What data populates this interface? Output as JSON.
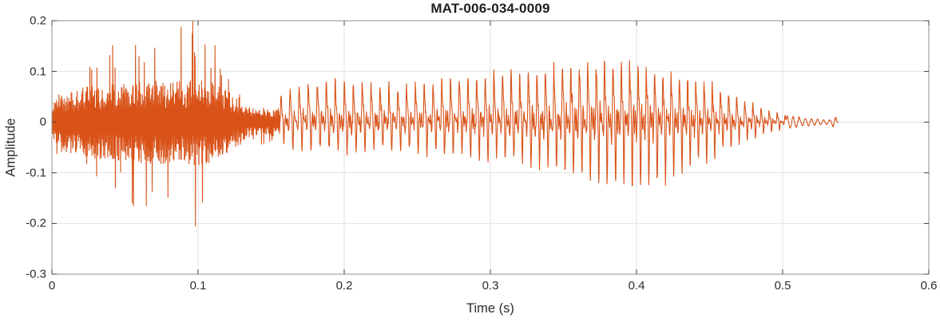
{
  "figure": {
    "title": "MAT-006-034-0009",
    "xlabel": "Time (s)",
    "ylabel": "Amplitude"
  },
  "colors": {
    "line": "#D95319",
    "grid": "#E2E2E2",
    "box": "#8C8C8C",
    "tick_mark": "#404040",
    "tick_text": "#2B2B2B",
    "title_text": "#1F1F1F"
  },
  "chart_data": {
    "type": "line",
    "title": "MAT-006-034-0009",
    "xlabel": "Time (s)",
    "ylabel": "Amplitude",
    "xlim": [
      0,
      0.6
    ],
    "ylim": [
      -0.3,
      0.2
    ],
    "grid": true,
    "box": true,
    "line_color": "#D95319",
    "xticks": {
      "values": [
        0,
        0.1,
        0.2,
        0.3,
        0.4,
        0.5,
        0.6
      ],
      "labels": [
        "0",
        "0.1",
        "0.2",
        "0.3",
        "0.4",
        "0.5",
        "0.6"
      ]
    },
    "yticks": {
      "values": [
        0.2,
        0.1,
        0,
        -0.1,
        -0.2,
        -0.3
      ],
      "labels": [
        "0.2",
        "0.1",
        "0",
        "-0.1",
        "-0.2",
        "-0.3"
      ]
    },
    "description": "Speech audio waveform: an unvoiced noisy burst from 0 to ~0.13 s peaking near +0.195/-0.215, a low-amplitude bridge until ~0.156 s, a periodic voiced segment (~160-182 Hz pitch) whose envelope rises from ~0.08 to a maximum of ~+0.12/-0.13 near 0.38-0.40 s then decays, and a small oscillatory tail ending at ~0.538 s.",
    "waveform": {
      "sample_dt": 0.0002,
      "seed": 1337,
      "segments": {
        "noise_end": 0.156,
        "voiced_end": 0.502,
        "signal_end": 0.538
      },
      "noise_envelope": {
        "t": [
          0.0,
          0.004,
          0.012,
          0.025,
          0.04,
          0.055,
          0.068,
          0.08,
          0.093,
          0.1,
          0.108,
          0.118,
          0.126,
          0.131,
          0.136,
          0.145,
          0.152,
          0.156
        ],
        "body": [
          0.03,
          0.055,
          0.065,
          0.07,
          0.075,
          0.08,
          0.085,
          0.08,
          0.085,
          0.085,
          0.08,
          0.065,
          0.05,
          0.035,
          0.028,
          0.025,
          0.028,
          0.03
        ],
        "peak": [
          0.05,
          0.08,
          0.1,
          0.13,
          0.15,
          0.17,
          0.2,
          0.18,
          0.195,
          0.21,
          0.17,
          0.14,
          0.09,
          0.055,
          0.04,
          0.045,
          0.05,
          0.055
        ]
      },
      "voiced_envelope": {
        "t": [
          0.156,
          0.165,
          0.18,
          0.2,
          0.215,
          0.235,
          0.255,
          0.275,
          0.295,
          0.315,
          0.335,
          0.355,
          0.37,
          0.383,
          0.395,
          0.41,
          0.425,
          0.44,
          0.455,
          0.465,
          0.475,
          0.485,
          0.495,
          0.502
        ],
        "pos": [
          0.05,
          0.068,
          0.078,
          0.082,
          0.075,
          0.07,
          0.075,
          0.082,
          0.09,
          0.095,
          0.1,
          0.108,
          0.115,
          0.12,
          0.112,
          0.1,
          0.09,
          0.082,
          0.068,
          0.055,
          0.042,
          0.03,
          0.02,
          0.014
        ],
        "neg": [
          0.035,
          0.048,
          0.055,
          0.058,
          0.055,
          0.052,
          0.058,
          0.062,
          0.068,
          0.075,
          0.085,
          0.095,
          0.105,
          0.115,
          0.128,
          0.12,
          0.105,
          0.085,
          0.062,
          0.048,
          0.036,
          0.026,
          0.017,
          0.012
        ]
      },
      "voiced_f0_hz": [
        160,
        182
      ],
      "tail": {
        "t": [
          0.502,
          0.51,
          0.52,
          0.528,
          0.533,
          0.5355,
          0.538
        ],
        "amp": [
          0.012,
          0.009,
          0.006,
          0.004,
          0.004,
          0.011,
          0.002
        ],
        "freq_hz": 240
      }
    }
  }
}
